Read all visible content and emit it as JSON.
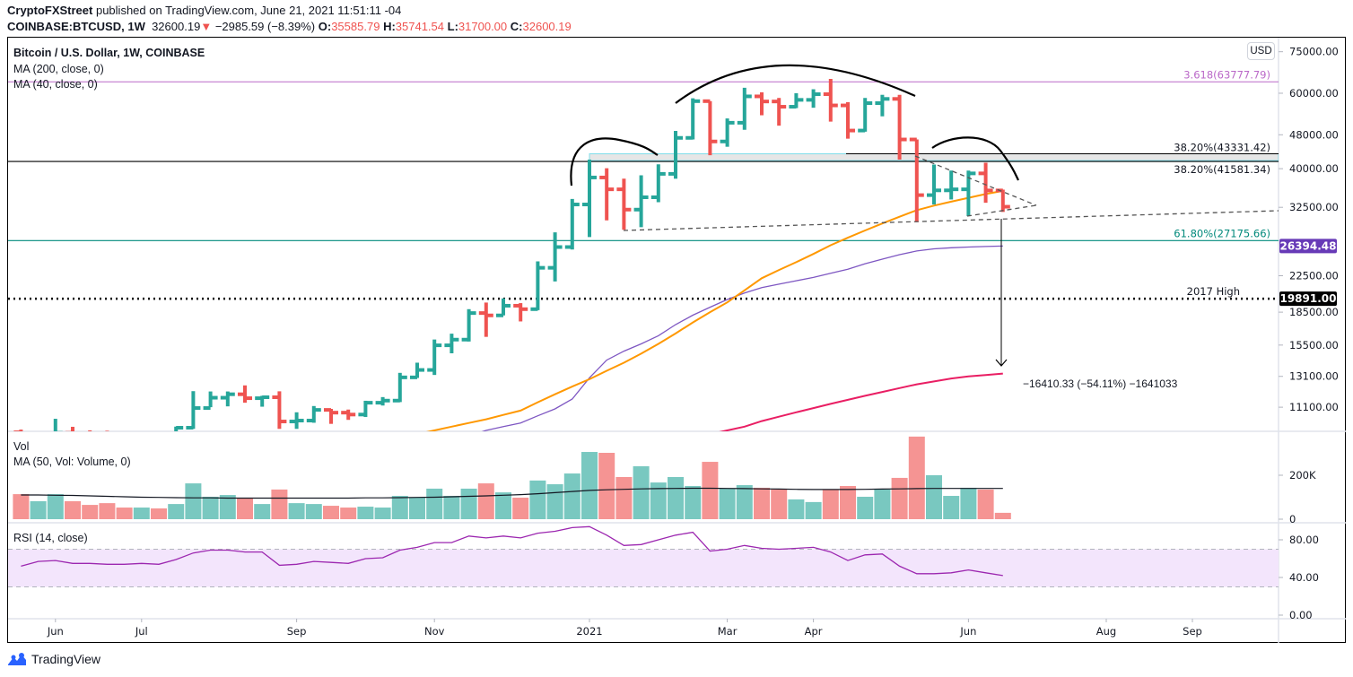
{
  "header": {
    "publisher": "CryptoFXStreet",
    "published_text": " published on TradingView.com, June 21, 2021 11:51:11 -04",
    "symbol": "COINBASE:BTCUSD, 1W",
    "last": "32600.19",
    "change": "−2985.59 (−8.39%)",
    "o_label": "O:",
    "o": "35585.79",
    "h_label": "H:",
    "h": "35741.54",
    "l_label": "L:",
    "l": "31700.00",
    "c_label": "C:",
    "c": "32600.19"
  },
  "legend": {
    "title": "Bitcoin / U.S. Dollar, 1W, COINBASE",
    "ma200": "MA (200, close, 0)",
    "ma40": "MA (40, close, 0)"
  },
  "currency_button": "USD",
  "volume_legend": {
    "title": "Vol",
    "ma": "MA (50, Vol: Volume, 0)"
  },
  "rsi_legend": "RSI (14, close)",
  "footer": {
    "brand": "TradingView"
  },
  "colors": {
    "up": "#26a69a",
    "down": "#ef5350",
    "ma40": "#ff9800",
    "ma_purple": "#7e57c2",
    "ma200": "#e91e63",
    "fib_3618": "#ba68c8",
    "fib_618": "#00897b",
    "rsi": "#9c27b0",
    "rsi_band": "#f3e5fc",
    "badge_purple": "#673ab7"
  },
  "chart_data": {
    "type": "ohlc",
    "scale": "log",
    "x": [
      "2020-05-18",
      "2020-05-25",
      "2020-06-01",
      "2020-06-08",
      "2020-06-15",
      "2020-06-22",
      "2020-06-29",
      "2020-07-06",
      "2020-07-13",
      "2020-07-20",
      "2020-07-27",
      "2020-08-03",
      "2020-08-10",
      "2020-08-17",
      "2020-08-24",
      "2020-08-31",
      "2020-09-07",
      "2020-09-14",
      "2020-09-21",
      "2020-09-28",
      "2020-10-05",
      "2020-10-12",
      "2020-10-19",
      "2020-10-26",
      "2020-11-02",
      "2020-11-09",
      "2020-11-16",
      "2020-11-23",
      "2020-11-30",
      "2020-12-07",
      "2020-12-14",
      "2020-12-21",
      "2020-12-28",
      "2021-01-04",
      "2021-01-11",
      "2021-01-18",
      "2021-01-25",
      "2021-02-01",
      "2021-02-08",
      "2021-02-15",
      "2021-02-22",
      "2021-03-01",
      "2021-03-08",
      "2021-03-15",
      "2021-03-22",
      "2021-03-29",
      "2021-04-05",
      "2021-04-12",
      "2021-04-19",
      "2021-04-26",
      "2021-05-03",
      "2021-05-10",
      "2021-05-17",
      "2021-05-24",
      "2021-05-31",
      "2021-06-07",
      "2021-06-14",
      "2021-06-21"
    ],
    "open": [
      9700,
      9180,
      9450,
      9670,
      9330,
      9300,
      9010,
      8990,
      9230,
      9160,
      9940,
      11050,
      11680,
      11900,
      11650,
      11710,
      10280,
      10330,
      10940,
      10780,
      10670,
      11370,
      11500,
      13030,
      13560,
      15480,
      15960,
      18410,
      18180,
      19150,
      18800,
      23480,
      26250,
      33000,
      38150,
      35800,
      32100,
      34300,
      38900,
      47200,
      57500,
      46300,
      51200,
      59000,
      57400,
      55800,
      57900,
      59700,
      56200,
      49100,
      56900,
      58200,
      46800,
      34700,
      35600,
      35800,
      39000,
      35585.79
    ],
    "high": [
      9840,
      9580,
      10430,
      9990,
      9800,
      9780,
      9300,
      9480,
      9330,
      10000,
      12100,
      12080,
      12080,
      12480,
      11800,
      12090,
      10800,
      11170,
      11000,
      10960,
      11490,
      11720,
      13350,
      14100,
      15970,
      16480,
      18800,
      19480,
      19920,
      19420,
      24300,
      28400,
      34000,
      42000,
      40100,
      37900,
      38600,
      40950,
      49000,
      58400,
      57500,
      52400,
      61800,
      60300,
      58500,
      60000,
      61300,
      64800,
      57200,
      58500,
      59500,
      59500,
      46800,
      40900,
      39600,
      39600,
      41300,
      35741.54
    ],
    "low": [
      8800,
      8640,
      9250,
      9100,
      9200,
      8850,
      8900,
      9050,
      9000,
      9140,
      9880,
      11100,
      11150,
      11370,
      11130,
      9880,
      9880,
      10210,
      10150,
      10370,
      10530,
      11200,
      11410,
      12990,
      13200,
      14830,
      15800,
      16200,
      18180,
      17600,
      18700,
      21820,
      25900,
      27700,
      30300,
      28800,
      29200,
      33400,
      37900,
      46800,
      43000,
      45000,
      49300,
      53300,
      50400,
      55400,
      55500,
      51500,
      47000,
      48800,
      53000,
      42000,
      30000,
      33000,
      33900,
      31000,
      33300,
      31700
    ],
    "close": [
      9180,
      9450,
      9670,
      9330,
      9300,
      9010,
      8990,
      9230,
      9160,
      9940,
      11050,
      11680,
      11900,
      11650,
      11710,
      10280,
      10330,
      10940,
      10780,
      10670,
      11370,
      11500,
      13030,
      13560,
      15480,
      15960,
      18410,
      18180,
      19150,
      18800,
      23480,
      26250,
      33000,
      38150,
      35800,
      32100,
      34300,
      38900,
      47200,
      57500,
      46300,
      51200,
      59000,
      57400,
      55800,
      57900,
      59700,
      56200,
      49100,
      56900,
      58200,
      46800,
      34700,
      35600,
      35800,
      39000,
      35585.79,
      32600.19
    ],
    "ma40": [
      null,
      null,
      null,
      null,
      null,
      null,
      null,
      null,
      null,
      null,
      null,
      null,
      null,
      null,
      null,
      null,
      null,
      null,
      null,
      null,
      null,
      null,
      null,
      9600,
      9800,
      10000,
      10200,
      10400,
      10650,
      10900,
      11400,
      11900,
      12400,
      12900,
      13500,
      14100,
      14800,
      15600,
      16500,
      17500,
      18500,
      19500,
      20800,
      22200,
      23200,
      24200,
      25300,
      26500,
      27600,
      28700,
      29800,
      30900,
      32000,
      32800,
      33500,
      34200,
      34900,
      35500
    ],
    "line_purple": [
      null,
      null,
      null,
      null,
      null,
      null,
      null,
      null,
      null,
      null,
      null,
      null,
      null,
      null,
      null,
      null,
      null,
      null,
      null,
      null,
      null,
      null,
      null,
      null,
      null,
      null,
      9500,
      9800,
      10000,
      10200,
      10600,
      11000,
      11600,
      13000,
      14300,
      15000,
      15600,
      16300,
      17300,
      18200,
      19000,
      19800,
      20500,
      21100,
      21500,
      21900,
      22300,
      22800,
      23300,
      24000,
      24600,
      25200,
      25700,
      26000,
      26150,
      26250,
      26330,
      26394.48
    ],
    "ma200": [
      null,
      null,
      null,
      null,
      null,
      null,
      null,
      null,
      null,
      null,
      null,
      null,
      null,
      null,
      null,
      null,
      null,
      null,
      null,
      null,
      null,
      null,
      null,
      null,
      null,
      null,
      null,
      null,
      null,
      null,
      null,
      null,
      null,
      null,
      null,
      null,
      null,
      null,
      null,
      null,
      9600,
      9800,
      10000,
      10300,
      10550,
      10800,
      11050,
      11300,
      11550,
      11800,
      12050,
      12300,
      12550,
      12750,
      12950,
      13100,
      13200,
      13300
    ],
    "volume": [
      114000,
      82000,
      114000,
      82000,
      65000,
      73000,
      53000,
      53000,
      49000,
      69000,
      163000,
      102000,
      110000,
      98000,
      69000,
      135000,
      73000,
      69000,
      61000,
      53000,
      57000,
      53000,
      106000,
      98000,
      139000,
      106000,
      139000,
      163000,
      122000,
      98000,
      176000,
      159000,
      208000,
      306000,
      302000,
      192000,
      241000,
      167000,
      192000,
      151000,
      261000,
      139000,
      155000,
      143000,
      135000,
      90000,
      78000,
      135000,
      151000,
      102000,
      135000,
      188000,
      376000,
      200000,
      106000,
      143000,
      135000,
      29000
    ],
    "volume_ma50": [
      110000,
      110000,
      109000,
      108000,
      106000,
      104000,
      102000,
      100000,
      99000,
      98000,
      97000,
      97000,
      96000,
      96000,
      96000,
      96000,
      96000,
      96000,
      96000,
      96000,
      97000,
      97000,
      98000,
      99000,
      100000,
      102000,
      104000,
      106000,
      109000,
      112000,
      116000,
      121000,
      126000,
      131000,
      134000,
      136000,
      138000,
      139000,
      140000,
      141000,
      141000,
      140000,
      139000,
      138000,
      137000,
      136000,
      135000,
      135000,
      135000,
      136000,
      137000,
      138000,
      139000,
      140000,
      140000,
      140000,
      140000,
      140000
    ],
    "rsi": [
      52,
      57,
      58,
      55,
      55,
      54,
      54,
      55,
      54,
      59,
      66,
      69,
      69,
      67,
      67,
      53,
      54,
      57,
      56,
      55,
      60,
      61,
      69,
      72,
      77,
      77,
      84,
      82,
      84,
      82,
      87,
      89,
      93,
      94,
      85,
      74,
      75,
      80,
      85,
      88,
      68,
      70,
      74,
      71,
      70,
      71,
      72,
      67,
      58,
      64,
      65,
      52,
      44,
      44,
      45,
      48,
      45,
      42
    ],
    "rsi_levels": [
      70,
      30
    ],
    "price_axis": [
      {
        "value": 75000,
        "label": "75000.00"
      },
      {
        "value": 60000,
        "label": "60000.00"
      },
      {
        "value": 48000,
        "label": "48000.00"
      },
      {
        "value": 40000,
        "label": "40000.00"
      },
      {
        "value": 32500,
        "label": "32500.00"
      },
      {
        "value": 22500,
        "label": "22500.00"
      },
      {
        "value": 18500,
        "label": "18500.00"
      },
      {
        "value": 15500,
        "label": "15500.00"
      },
      {
        "value": 13100,
        "label": "13100.00"
      },
      {
        "value": 11100,
        "label": "11100.00"
      }
    ],
    "volume_axis": [
      {
        "value": 200000,
        "label": "200K"
      },
      {
        "value": 0,
        "label": "0"
      }
    ],
    "rsi_axis": [
      {
        "value": 80,
        "label": "80.00"
      },
      {
        "value": 40,
        "label": "40.00"
      },
      {
        "value": 0,
        "label": "0.00"
      }
    ],
    "time_axis": [
      {
        "date": "2020-06-01",
        "label": "Jun"
      },
      {
        "date": "2020-07-06",
        "label": "Jul"
      },
      {
        "date": "2020-09-07",
        "label": "Sep"
      },
      {
        "date": "2020-11-02",
        "label": "Nov"
      },
      {
        "date": "2021-01-04",
        "label": "2021"
      },
      {
        "date": "2021-03-01",
        "label": "Mar"
      },
      {
        "date": "2021-04-05",
        "label": "Apr"
      },
      {
        "date": "2021-06-07",
        "label": "Jun"
      },
      {
        "date": "2021-08-02",
        "label": "Aug"
      },
      {
        "date": "2021-09-06",
        "label": "Sep"
      }
    ],
    "levels": {
      "fib_3618": {
        "value": 63777.79,
        "label": "3.618(63777.79)"
      },
      "fib_382_upper": {
        "value": 43331.42,
        "label": "38.20%(43331.42)"
      },
      "fib_382_lower": {
        "value": 41581.34,
        "label": "38.20%(41581.34)"
      },
      "fib_618": {
        "value": 27175.66,
        "label": "61.80%(27175.66)"
      },
      "high_2017": {
        "value": 19891.0,
        "label": "2017 High",
        "badge": "19891.00"
      }
    },
    "purple_line_badge": "26394.48",
    "measured_move_label": "−16410.33 (−54.11%) −1641033"
  }
}
